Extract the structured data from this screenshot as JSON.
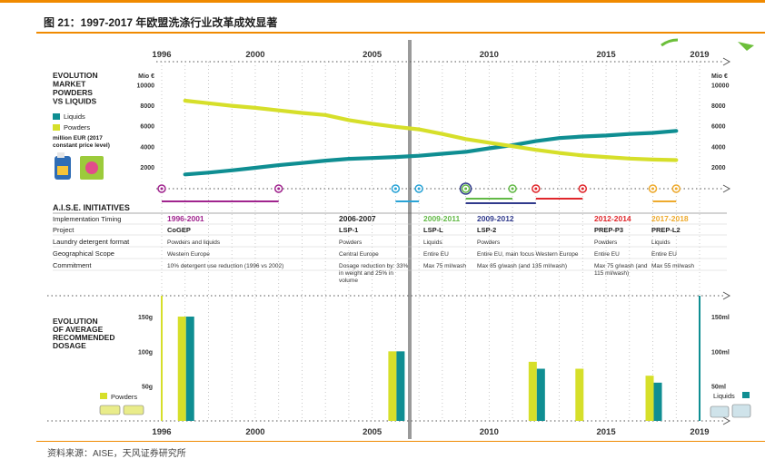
{
  "figure_title": "图 21：1997-2017 年欧盟洗涤行业改革成效显著",
  "source_note": "资料来源：AISE，天风证券研究所",
  "colors": {
    "accent": "#f08a00",
    "liquids": "#0f8e92",
    "powders": "#d6df2a",
    "cogep": "#a0248e",
    "lsp1": "#29a3d6",
    "lspl": "#62b946",
    "lsp2": "#303a8c",
    "prep": "#e0262b",
    "prepl2": "#eeaa2d",
    "divider": "#9a9a9a",
    "text": "#222222"
  },
  "chart_data": [
    {
      "type": "line",
      "title": "EVOLUTION MARKET POWDERS VS LIQUIDS",
      "unit_left": "Mio €",
      "unit_right": "Mio €",
      "note": "million EUR (2017 constant price level)",
      "x_ticks": [
        1996,
        2000,
        2005,
        2010,
        2015,
        2019
      ],
      "y_ticks": [
        2000,
        4000,
        6000,
        8000,
        10000
      ],
      "ylim": [
        0,
        11000
      ],
      "xlim": [
        1996,
        2019
      ],
      "legend": [
        "Liquids",
        "Powders"
      ],
      "series": [
        {
          "name": "Liquids",
          "color": "#0f8e92",
          "points": [
            [
              1997,
              1300
            ],
            [
              1998,
              1480
            ],
            [
              1999,
              1700
            ],
            [
              2000,
              1950
            ],
            [
              2001,
              2200
            ],
            [
              2002,
              2420
            ],
            [
              2003,
              2650
            ],
            [
              2004,
              2820
            ],
            [
              2005,
              2900
            ],
            [
              2006,
              3000
            ],
            [
              2007,
              3120
            ],
            [
              2008,
              3320
            ],
            [
              2009,
              3500
            ],
            [
              2010,
              3850
            ],
            [
              2011,
              4150
            ],
            [
              2012,
              4550
            ],
            [
              2013,
              4850
            ],
            [
              2014,
              5000
            ],
            [
              2015,
              5100
            ],
            [
              2016,
              5250
            ],
            [
              2017,
              5350
            ],
            [
              2018,
              5550
            ]
          ]
        },
        {
          "name": "Powders",
          "color": "#d6df2a",
          "points": [
            [
              1997,
              8500
            ],
            [
              1998,
              8250
            ],
            [
              1999,
              8000
            ],
            [
              2000,
              7800
            ],
            [
              2001,
              7550
            ],
            [
              2002,
              7300
            ],
            [
              2003,
              7100
            ],
            [
              2004,
              6600
            ],
            [
              2005,
              6250
            ],
            [
              2006,
              5950
            ],
            [
              2007,
              5700
            ],
            [
              2008,
              5250
            ],
            [
              2009,
              4750
            ],
            [
              2010,
              4400
            ],
            [
              2011,
              4050
            ],
            [
              2012,
              3700
            ],
            [
              2013,
              3400
            ],
            [
              2014,
              3150
            ],
            [
              2015,
              3000
            ],
            [
              2016,
              2850
            ],
            [
              2017,
              2750
            ],
            [
              2018,
              2700
            ]
          ]
        }
      ]
    },
    {
      "type": "bar",
      "title": "EVOLUTION OF AVERAGE RECOMMENDED DOSAGE",
      "x_ticks": [
        1996,
        2000,
        2005,
        2010,
        2015,
        2019
      ],
      "left_ticks": [
        "50g",
        "100g",
        "150g"
      ],
      "right_ticks": [
        "50ml",
        "100ml",
        "150ml"
      ],
      "legend_left": "Powders",
      "legend_right": "Liquids",
      "bars": [
        {
          "year": 1997,
          "series": "Powders",
          "value": 150,
          "unit": "g"
        },
        {
          "year": 1997,
          "series": "Liquids",
          "value": 150,
          "unit": "ml"
        },
        {
          "year": 2006,
          "series": "Powders",
          "value": 100,
          "unit": "g"
        },
        {
          "year": 2006,
          "series": "Liquids",
          "value": 100,
          "unit": "ml"
        },
        {
          "year": 2012,
          "series": "Powders",
          "value": 85,
          "unit": "g"
        },
        {
          "year": 2012,
          "series": "Liquids",
          "value": 75,
          "unit": "ml"
        },
        {
          "year": 2014,
          "series": "Powders",
          "value": 75,
          "unit": "g"
        },
        {
          "year": 2017,
          "series": "Powders",
          "value": 65,
          "unit": "g"
        },
        {
          "year": 2017,
          "series": "Liquids",
          "value": 55,
          "unit": "ml"
        }
      ]
    }
  ],
  "initiatives": {
    "title": "A.I.S.E. INITIATIVES",
    "row_labels": [
      "Implementation Timing",
      "Project",
      "Laundry detergent format",
      "Geographical Scope",
      "Commitment"
    ],
    "columns": [
      {
        "timing": "1996-2001",
        "project": "CoGEP",
        "format": "Powders and liquids",
        "scope": "Western Europe",
        "commitment": "10% detergent use reduction (1996 vs 2002)",
        "color": "#a0248e"
      },
      {
        "timing": "2006-2007",
        "project": "LSP-1",
        "format": "Powders",
        "scope": "Central Europe",
        "commitment": "Dosage reduction by: 33% in weight and 25% in volume",
        "color": "#222222"
      },
      {
        "timing": "2009-2011",
        "project": "LSP-L",
        "format": "Liquids",
        "scope": "Entire EU",
        "commitment": "Max 75 ml/wash",
        "color": "#62b946"
      },
      {
        "timing": "2009-2012",
        "project": "LSP-2",
        "format": "Powders",
        "scope": "Entire EU, main focus Western Europe",
        "commitment": "Max 85 g/wash (and 135 ml/wash)",
        "color": "#303a8c"
      },
      {
        "timing": "2012-2014",
        "project": "PREP-P3",
        "format": "Powders",
        "scope": "Entire EU",
        "commitment": "Max 75 g/wash (and 115 ml/wash)",
        "color": "#e0262b"
      },
      {
        "timing": "2017-2018",
        "project": "PREP-L2",
        "format": "Liquids",
        "scope": "Entire EU",
        "commitment": "Max 55 ml/wash",
        "color": "#eeaa2d"
      }
    ]
  }
}
